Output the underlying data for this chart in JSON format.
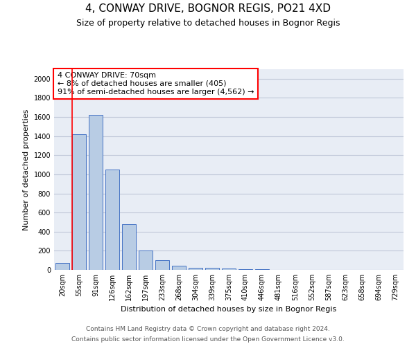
{
  "title": "4, CONWAY DRIVE, BOGNOR REGIS, PO21 4XD",
  "subtitle": "Size of property relative to detached houses in Bognor Regis",
  "xlabel": "Distribution of detached houses by size in Bognor Regis",
  "ylabel": "Number of detached properties",
  "footnote1": "Contains HM Land Registry data © Crown copyright and database right 2024.",
  "footnote2": "Contains public sector information licensed under the Open Government Licence v3.0.",
  "categories": [
    "20sqm",
    "55sqm",
    "91sqm",
    "126sqm",
    "162sqm",
    "197sqm",
    "233sqm",
    "268sqm",
    "304sqm",
    "339sqm",
    "375sqm",
    "410sqm",
    "446sqm",
    "481sqm",
    "516sqm",
    "552sqm",
    "587sqm",
    "623sqm",
    "658sqm",
    "694sqm",
    "729sqm"
  ],
  "values": [
    70,
    1420,
    1620,
    1050,
    480,
    200,
    100,
    40,
    25,
    20,
    15,
    10,
    5,
    3,
    2,
    1,
    1,
    1,
    1,
    1,
    0
  ],
  "bar_color": "#b8cce4",
  "bar_edge_color": "#4472c4",
  "annotation_title": "4 CONWAY DRIVE: 70sqm",
  "annotation_line1": "← 8% of detached houses are smaller (405)",
  "annotation_line2": "91% of semi-detached houses are larger (4,562) →",
  "annotation_box_color": "white",
  "annotation_box_edge_color": "red",
  "grid_color": "#c0c8d8",
  "bg_color": "#e8edf5",
  "ylim": [
    0,
    2100
  ],
  "yticks": [
    0,
    200,
    400,
    600,
    800,
    1000,
    1200,
    1400,
    1600,
    1800,
    2000
  ],
  "title_fontsize": 11,
  "subtitle_fontsize": 9,
  "axis_label_fontsize": 8,
  "tick_fontsize": 7,
  "annotation_fontsize": 8,
  "footnote_fontsize": 6.5,
  "red_line_x": 0.57
}
